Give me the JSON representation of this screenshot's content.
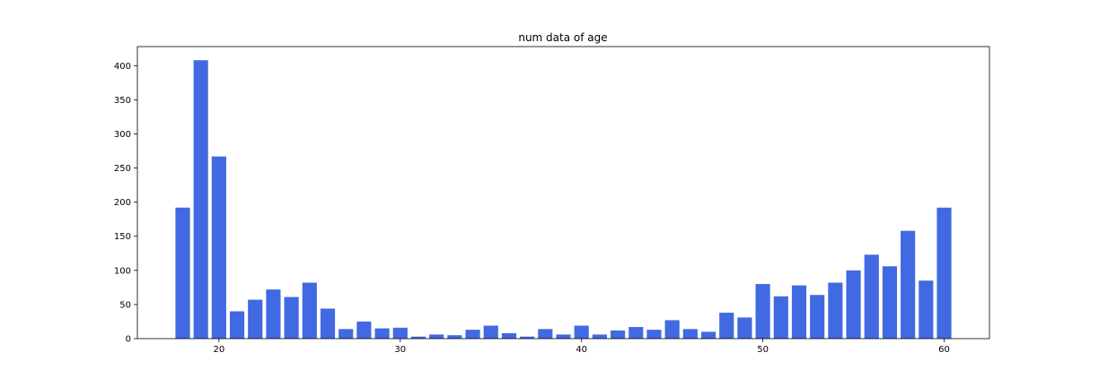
{
  "chart_data": {
    "type": "bar",
    "title": "num data of age",
    "xlabel": "",
    "ylabel": "",
    "x": [
      18,
      19,
      20,
      21,
      22,
      23,
      24,
      25,
      26,
      27,
      28,
      29,
      30,
      31,
      32,
      33,
      34,
      35,
      36,
      37,
      38,
      39,
      40,
      41,
      42,
      43,
      44,
      45,
      46,
      47,
      48,
      49,
      50,
      51,
      52,
      53,
      54,
      55,
      56,
      57,
      58,
      59,
      60
    ],
    "values": [
      192,
      408,
      267,
      40,
      57,
      72,
      61,
      82,
      44,
      14,
      25,
      15,
      16,
      3,
      6,
      5,
      13,
      19,
      8,
      3,
      14,
      6,
      19,
      6,
      12,
      17,
      13,
      27,
      14,
      10,
      38,
      31,
      80,
      62,
      78,
      64,
      82,
      100,
      123,
      106,
      158,
      85,
      192
    ],
    "xlim": [
      15.5,
      62.5
    ],
    "ylim": [
      0,
      428
    ],
    "xticks": [
      20,
      30,
      40,
      50,
      60
    ],
    "yticks": [
      0,
      50,
      100,
      150,
      200,
      250,
      300,
      350,
      400
    ],
    "bar_color": "#4169e1",
    "grid": false
  }
}
